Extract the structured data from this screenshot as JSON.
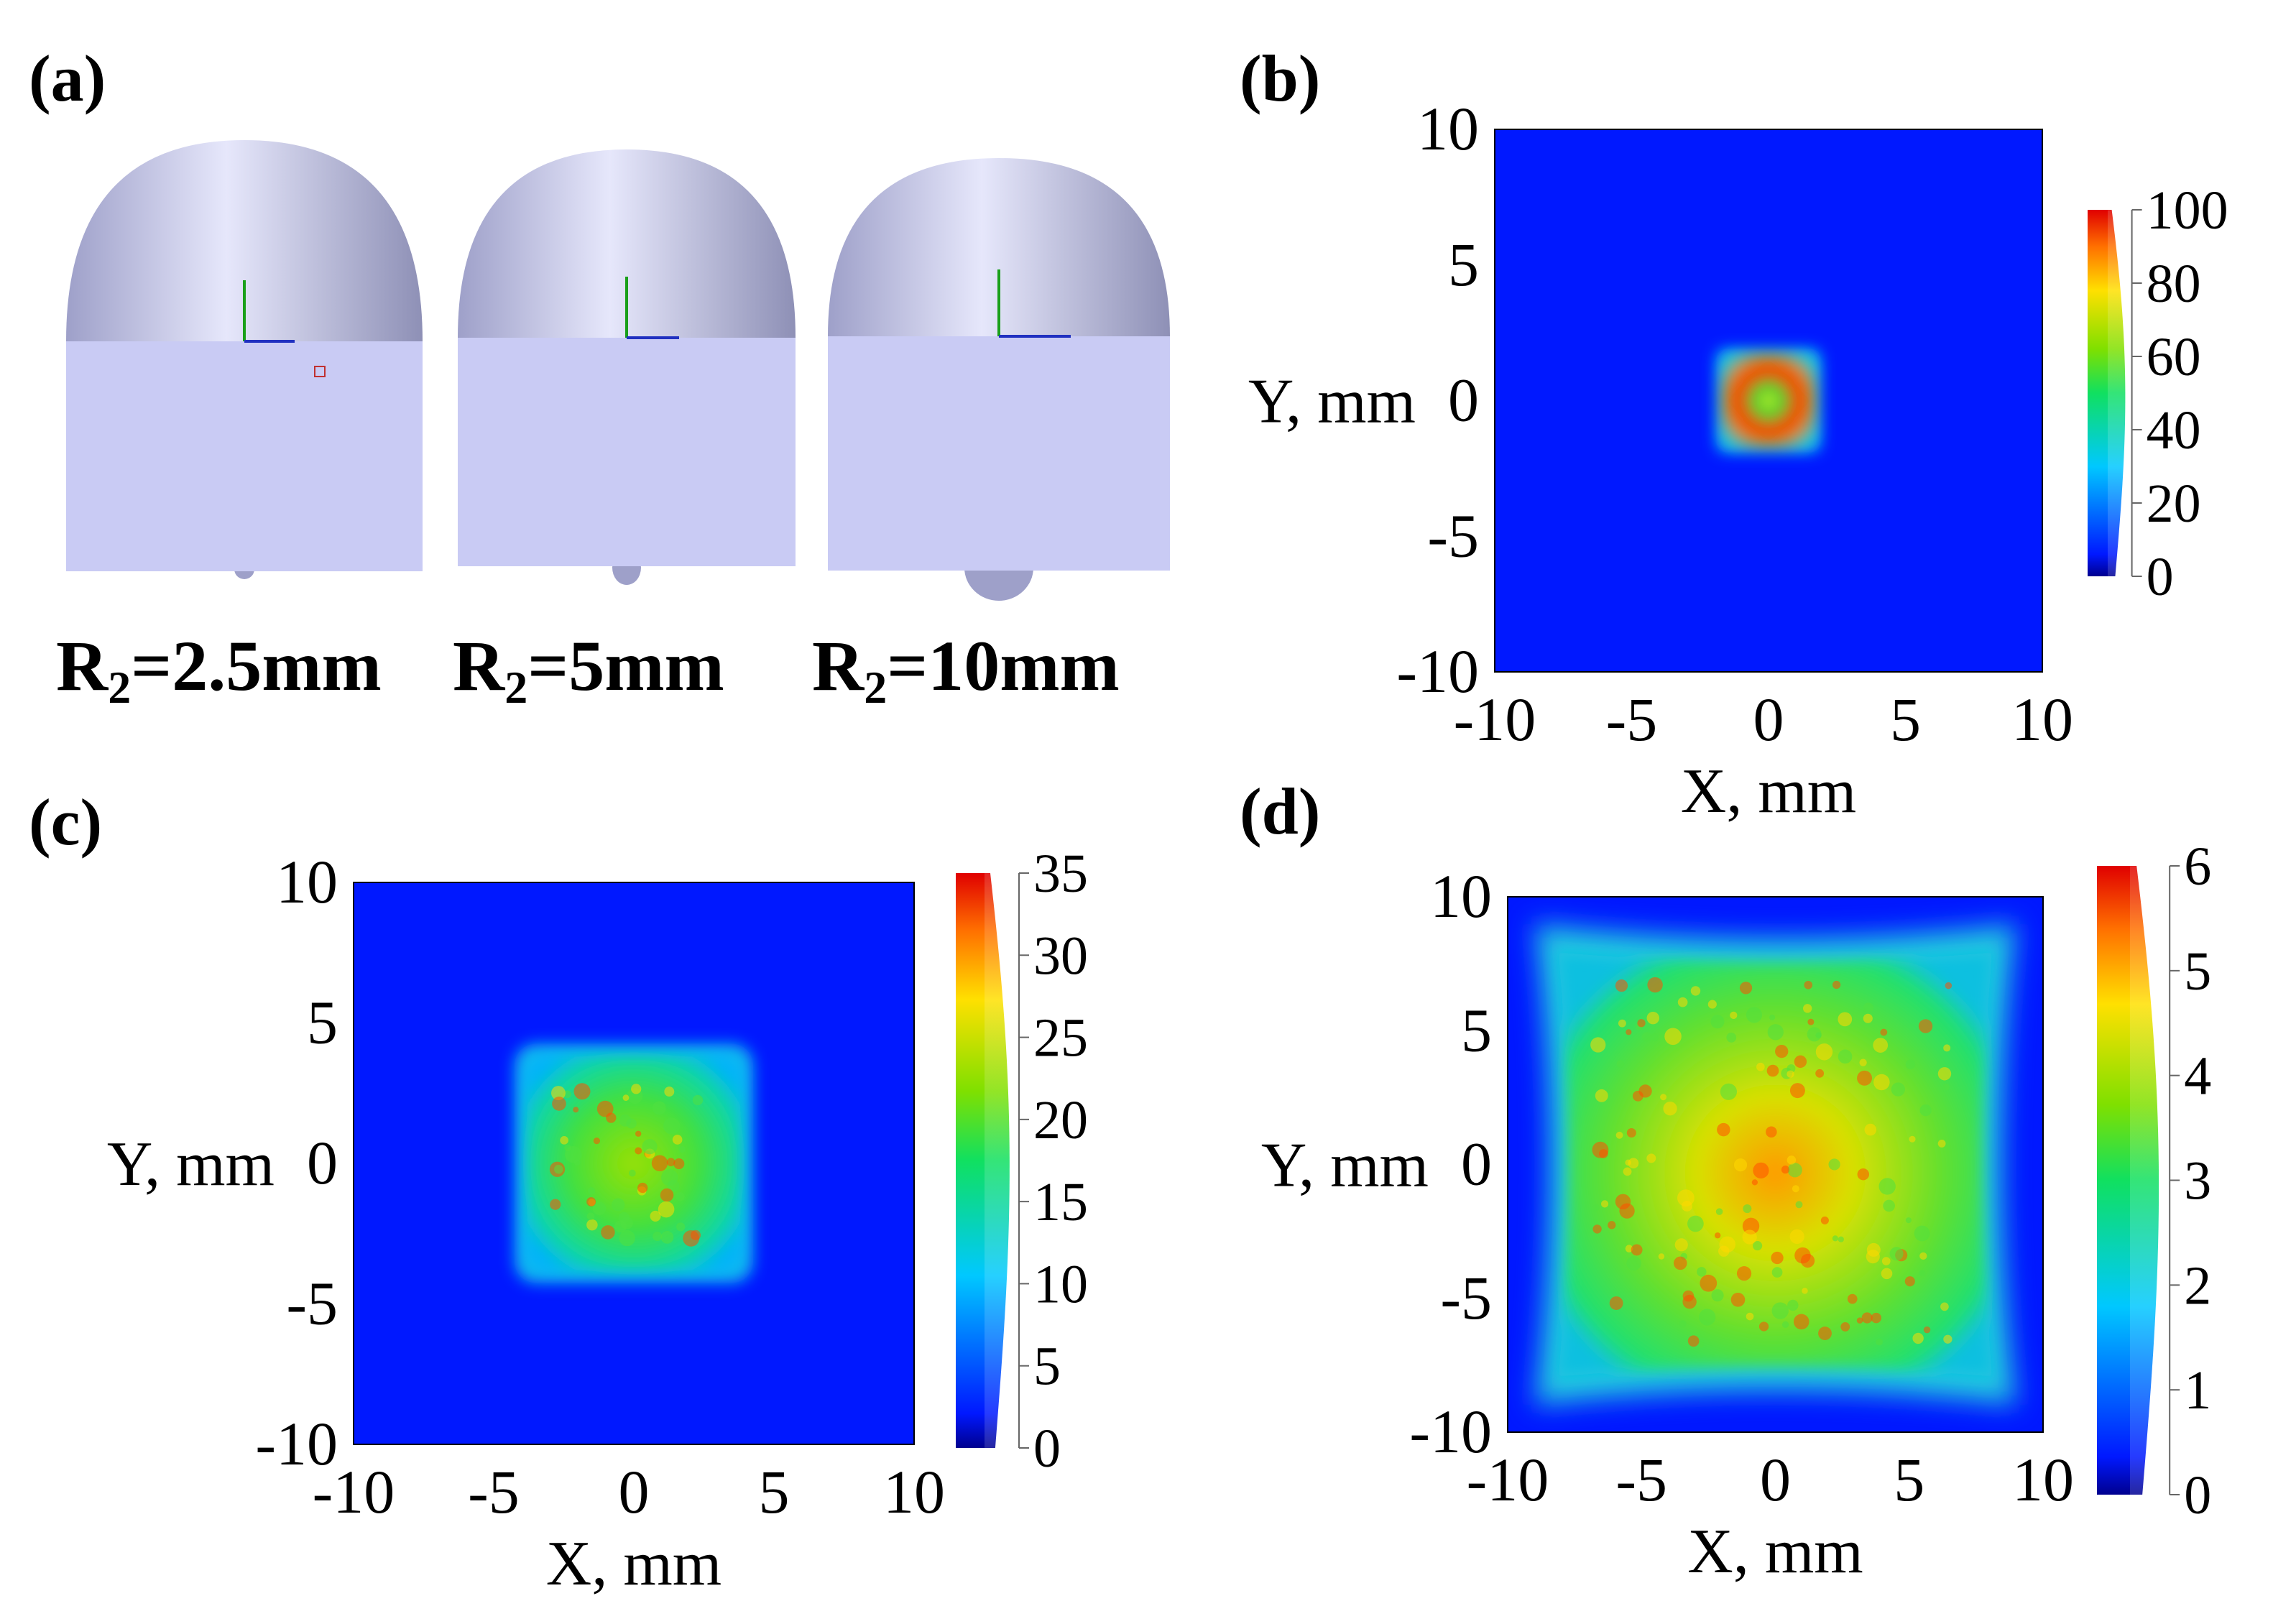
{
  "panels": [
    {
      "id": "a",
      "label": "(a)"
    },
    {
      "id": "b",
      "label": "(b)"
    },
    {
      "id": "c",
      "label": "(c)"
    },
    {
      "id": "d",
      "label": "(d)"
    }
  ],
  "lenses": [
    {
      "prefix": "R",
      "sub": "2",
      "value": "=2.5mm"
    },
    {
      "prefix": "R",
      "sub": "2",
      "value": "=5mm"
    },
    {
      "prefix": "R",
      "sub": "2",
      "value": "=10mm"
    }
  ],
  "colors": {
    "background_field": "#0018ff",
    "lens_body": "#c9cbf4",
    "lens_edge": "#8e90b6"
  },
  "chart_data": [
    {
      "panel": "b",
      "type": "heatmap",
      "title": "",
      "xlabel": "X, mm",
      "ylabel": "Y, mm",
      "xlim": [
        -10,
        10
      ],
      "ylim": [
        -10,
        10
      ],
      "xticks": [
        "-10",
        "-5",
        "0",
        "5",
        "10"
      ],
      "yticks": [
        "10",
        "5",
        "0",
        "-5",
        "-10"
      ],
      "spot": {
        "shape": "square",
        "half_width_mm": 1.7,
        "peak_level": 100,
        "pattern": "ring"
      },
      "colorbar": {
        "min": 0,
        "max": 100,
        "ticks": [
          "100",
          "80",
          "60",
          "40",
          "20",
          "0"
        ]
      }
    },
    {
      "panel": "c",
      "type": "heatmap",
      "title": "",
      "xlabel": "X, mm",
      "ylabel": "Y, mm",
      "xlim": [
        -10,
        10
      ],
      "ylim": [
        -10,
        10
      ],
      "xticks": [
        "-10",
        "-5",
        "0",
        "5",
        "10"
      ],
      "yticks": [
        "10",
        "5",
        "0",
        "-5",
        "-10"
      ],
      "spot": {
        "shape": "square",
        "half_width_mm": 3.8,
        "peak_level": 35,
        "pattern": "speckle"
      },
      "colorbar": {
        "min": 0,
        "max": 35,
        "ticks": [
          "35",
          "30",
          "25",
          "20",
          "15",
          "10",
          "5",
          "0"
        ]
      }
    },
    {
      "panel": "d",
      "type": "heatmap",
      "title": "",
      "xlabel": "X, mm",
      "ylabel": "Y, mm",
      "xlim": [
        -10,
        10
      ],
      "ylim": [
        -10,
        10
      ],
      "xticks": [
        "-10",
        "-5",
        "0",
        "5",
        "10"
      ],
      "yticks": [
        "10",
        "5",
        "0",
        "-5",
        "-10"
      ],
      "spot": {
        "shape": "pincushion-square",
        "half_width_mm": 9.0,
        "peak_level": 6,
        "pattern": "speckle"
      },
      "colorbar": {
        "min": 0,
        "max": 6,
        "ticks": [
          "6",
          "5",
          "4",
          "3",
          "2",
          "1",
          "0"
        ]
      }
    }
  ]
}
